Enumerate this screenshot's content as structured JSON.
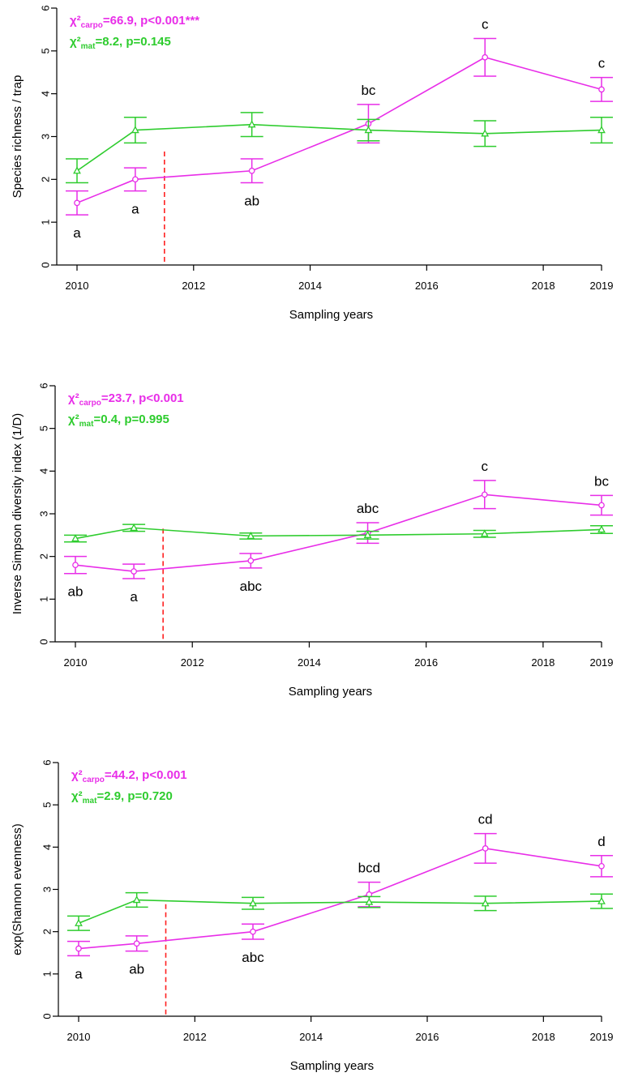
{
  "colors": {
    "carpo": "#e82ee8",
    "mat": "#2ecc2e",
    "marker": "#ff2020"
  },
  "chart_data": [
    {
      "type": "line",
      "ylabel": "Species richness / trap",
      "xlabel": "Sampling years",
      "ylim": [
        0,
        6
      ],
      "xlim": [
        2010,
        2019
      ],
      "yticks": [
        "0",
        "1",
        "2",
        "3",
        "4",
        "5",
        "6"
      ],
      "xticks": [
        "2010",
        "2012",
        "2014",
        "2016",
        "2018",
        "2019"
      ],
      "xtick_values": [
        2010,
        2012,
        2014,
        2016,
        2018,
        2019
      ],
      "vline_x": 2011.5,
      "stats": {
        "carpo": {
          "prefix": "χ²",
          "sub": "carpo",
          "rest": "=66.9, p<0.001***"
        },
        "mat": {
          "prefix": "χ²",
          "sub": "mat",
          "rest": "=8.2, p=0.145"
        }
      },
      "series": [
        {
          "key": "carpo",
          "marker": "circle",
          "x": [
            2010,
            2011,
            2013,
            2015,
            2017,
            2019
          ],
          "y": [
            1.45,
            2.0,
            2.2,
            3.3,
            4.85,
            4.1
          ],
          "err": [
            0.28,
            0.27,
            0.28,
            0.45,
            0.44,
            0.28
          ],
          "letters": [
            "a",
            "a",
            "ab",
            "bc",
            "c",
            "c"
          ],
          "letter_pos": [
            "below",
            "below",
            "below",
            "above",
            "above",
            "above"
          ]
        },
        {
          "key": "mat",
          "marker": "triangle",
          "x": [
            2010,
            2011,
            2013,
            2015,
            2017,
            2019
          ],
          "y": [
            2.2,
            3.15,
            3.28,
            3.15,
            3.07,
            3.15
          ],
          "err": [
            0.28,
            0.3,
            0.28,
            0.25,
            0.3,
            0.3
          ]
        }
      ]
    },
    {
      "type": "line",
      "ylabel": "Inverse Simpson diversity index (1/D)",
      "xlabel": "Sampling years",
      "ylim": [
        0,
        6
      ],
      "xlim": [
        2010,
        2019
      ],
      "yticks": [
        "0",
        "1",
        "2",
        "3",
        "4",
        "5",
        "6"
      ],
      "xticks": [
        "2010",
        "2012",
        "2014",
        "2016",
        "2018",
        "2019"
      ],
      "xtick_values": [
        2010,
        2012,
        2014,
        2016,
        2018,
        2019
      ],
      "vline_x": 2011.5,
      "stats": {
        "carpo": {
          "prefix": "χ²",
          "sub": "carpo",
          "rest": "=23.7, p<0.001"
        },
        "mat": {
          "prefix": "χ²",
          "sub": "mat",
          "rest": "=0.4, p=0.995"
        }
      },
      "series": [
        {
          "key": "carpo",
          "marker": "circle",
          "x": [
            2010,
            2011,
            2013,
            2015,
            2017,
            2019
          ],
          "y": [
            1.8,
            1.65,
            1.9,
            2.55,
            3.45,
            3.2
          ],
          "err": [
            0.2,
            0.17,
            0.17,
            0.24,
            0.33,
            0.23
          ],
          "letters": [
            "ab",
            "a",
            "abc",
            "abc",
            "c",
            "bc"
          ],
          "letter_pos": [
            "below",
            "below",
            "below",
            "above",
            "above",
            "above"
          ]
        },
        {
          "key": "mat",
          "marker": "triangle",
          "x": [
            2010,
            2011,
            2013,
            2015,
            2017,
            2019
          ],
          "y": [
            2.42,
            2.67,
            2.48,
            2.5,
            2.53,
            2.63
          ],
          "err": [
            0.08,
            0.08,
            0.07,
            0.09,
            0.08,
            0.09
          ]
        }
      ]
    },
    {
      "type": "line",
      "ylabel": "exp(Shannon evenness)",
      "xlabel": "Sampling years",
      "ylim": [
        0,
        6
      ],
      "xlim": [
        2010,
        2019
      ],
      "yticks": [
        "0",
        "1",
        "2",
        "3",
        "4",
        "5",
        "6"
      ],
      "xticks": [
        "2010",
        "2012",
        "2014",
        "2016",
        "2018",
        "2019"
      ],
      "xtick_values": [
        2010,
        2012,
        2014,
        2016,
        2018,
        2019
      ],
      "vline_x": 2011.5,
      "stats": {
        "carpo": {
          "prefix": "χ²",
          "sub": "carpo",
          "rest": "=44.2, p<0.001"
        },
        "mat": {
          "prefix": "χ²",
          "sub": "mat",
          "rest": "=2.9, p=0.720"
        }
      },
      "series": [
        {
          "key": "carpo",
          "marker": "circle",
          "x": [
            2010,
            2011,
            2013,
            2015,
            2017,
            2019
          ],
          "y": [
            1.6,
            1.72,
            2.0,
            2.88,
            3.97,
            3.55
          ],
          "err": [
            0.17,
            0.18,
            0.18,
            0.29,
            0.35,
            0.25
          ],
          "letters": [
            "a",
            "ab",
            "abc",
            "bcd",
            "cd",
            "d"
          ],
          "letter_pos": [
            "below",
            "below",
            "below",
            "above",
            "above",
            "above"
          ]
        },
        {
          "key": "mat",
          "marker": "triangle",
          "x": [
            2010,
            2011,
            2013,
            2015,
            2017,
            2019
          ],
          "y": [
            2.2,
            2.75,
            2.67,
            2.7,
            2.67,
            2.72
          ],
          "err": [
            0.17,
            0.17,
            0.14,
            0.13,
            0.17,
            0.17
          ]
        }
      ]
    }
  ]
}
